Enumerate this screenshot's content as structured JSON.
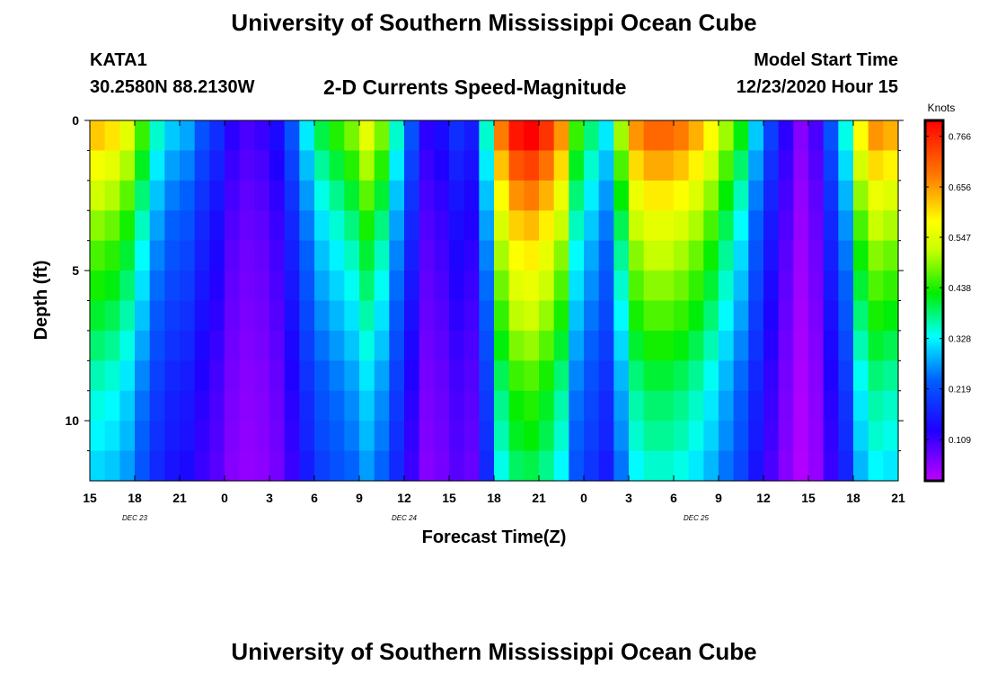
{
  "page": {
    "title": "University of Southern Mississippi Ocean Cube",
    "footer_title": "University of Southern Mississippi Ocean Cube",
    "station": "KATA1",
    "coords": "30.2580N 88.2130W",
    "subtitle": "2-D Currents Speed-Magnitude",
    "model_start_label": "Model Start Time",
    "model_start_value": "12/23/2020 Hour 15"
  },
  "chart_data": {
    "type": "heatmap",
    "title": "2-D Currents Speed-Magnitude",
    "xlabel": "Forecast Time(Z)",
    "ylabel": "Depth (ft)",
    "x_tick_labels": [
      "15",
      "18",
      "21",
      "0",
      "3",
      "6",
      "9",
      "12",
      "15",
      "18",
      "21",
      "0",
      "3",
      "6",
      "9",
      "12",
      "15",
      "18",
      "21"
    ],
    "date_labels": [
      "DEC 23",
      "DEC 24",
      "DEC 25"
    ],
    "date_label_ticks": [
      1,
      7,
      13.5
    ],
    "y_ticks": [
      0,
      5,
      10
    ],
    "ylim": [
      0,
      12
    ],
    "colorbar": {
      "label": "Knots",
      "ticks": [
        0.766,
        0.656,
        0.547,
        0.438,
        0.328,
        0.219,
        0.109
      ],
      "range": [
        0.02,
        0.8
      ]
    },
    "columns": 54,
    "rows": 12,
    "surface_profile": [
      0.62,
      0.6,
      0.55,
      0.45,
      0.35,
      0.3,
      0.28,
      0.22,
      0.18,
      0.12,
      0.1,
      0.11,
      0.14,
      0.22,
      0.32,
      0.4,
      0.44,
      0.48,
      0.55,
      0.48,
      0.35,
      0.22,
      0.12,
      0.14,
      0.18,
      0.16,
      0.35,
      0.68,
      0.78,
      0.8,
      0.75,
      0.66,
      0.45,
      0.38,
      0.32,
      0.5,
      0.66,
      0.7,
      0.7,
      0.68,
      0.64,
      0.58,
      0.5,
      0.42,
      0.3,
      0.2,
      0.12,
      0.06,
      0.1,
      0.22,
      0.34,
      0.58,
      0.66,
      0.64
    ],
    "depth_factor": [
      1.0,
      0.92,
      0.85,
      0.79,
      0.74,
      0.7,
      0.66,
      0.62,
      0.58,
      0.55,
      0.53,
      0.5
    ]
  }
}
